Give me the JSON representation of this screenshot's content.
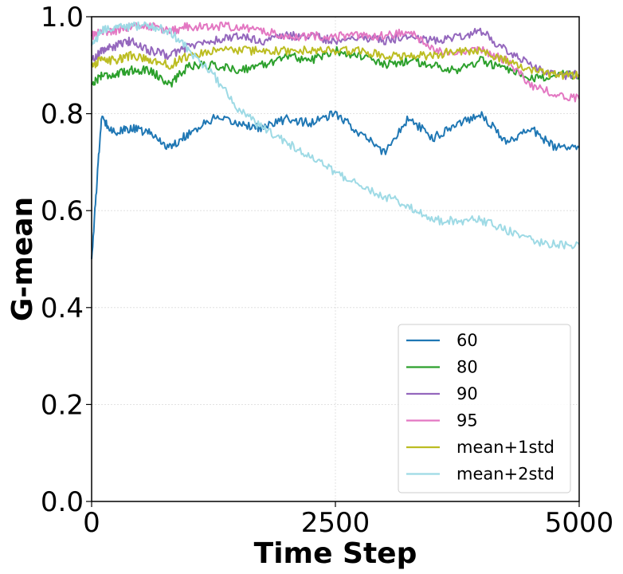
{
  "chart_data": {
    "type": "line",
    "xlabel": "Time Step",
    "ylabel": "G-mean",
    "xlim": [
      0,
      5000
    ],
    "ylim": [
      0.0,
      1.0
    ],
    "xticks": [
      0,
      2500,
      5000
    ],
    "xtick_labels": [
      "0",
      "2500",
      "5000"
    ],
    "yticks": [
      0.0,
      0.2,
      0.4,
      0.6,
      0.8,
      1.0
    ],
    "ytick_labels": [
      "0.0",
      "0.2",
      "0.4",
      "0.6",
      "0.8",
      "1.0"
    ],
    "grid": true,
    "legend_position": "lower-right",
    "x": [
      0,
      100,
      250,
      400,
      600,
      800,
      1000,
      1250,
      1500,
      1750,
      2000,
      2250,
      2500,
      2750,
      3000,
      3250,
      3500,
      3750,
      4000,
      4250,
      4500,
      4750,
      5000
    ],
    "series": [
      {
        "name": "60",
        "color": "#1f77b4",
        "values": [
          0.5,
          0.79,
          0.76,
          0.77,
          0.76,
          0.73,
          0.76,
          0.79,
          0.78,
          0.77,
          0.79,
          0.78,
          0.8,
          0.76,
          0.72,
          0.79,
          0.75,
          0.78,
          0.8,
          0.74,
          0.77,
          0.73,
          0.73
        ]
      },
      {
        "name": "80",
        "color": "#2ca02c",
        "values": [
          0.86,
          0.88,
          0.88,
          0.89,
          0.89,
          0.86,
          0.9,
          0.9,
          0.89,
          0.9,
          0.92,
          0.91,
          0.93,
          0.92,
          0.9,
          0.91,
          0.9,
          0.89,
          0.91,
          0.89,
          0.87,
          0.88,
          0.88
        ]
      },
      {
        "name": "90",
        "color": "#9467bd",
        "values": [
          0.91,
          0.93,
          0.94,
          0.95,
          0.93,
          0.92,
          0.94,
          0.95,
          0.96,
          0.95,
          0.96,
          0.96,
          0.95,
          0.96,
          0.95,
          0.96,
          0.95,
          0.96,
          0.97,
          0.93,
          0.9,
          0.88,
          0.88
        ]
      },
      {
        "name": "95",
        "color": "#e377c2",
        "values": [
          0.96,
          0.97,
          0.97,
          0.98,
          0.98,
          0.97,
          0.98,
          0.98,
          0.98,
          0.97,
          0.96,
          0.96,
          0.96,
          0.96,
          0.96,
          0.97,
          0.93,
          0.93,
          0.93,
          0.91,
          0.86,
          0.84,
          0.83
        ]
      },
      {
        "name": "mean+1std",
        "color": "#bcbd22",
        "values": [
          0.9,
          0.91,
          0.91,
          0.92,
          0.91,
          0.9,
          0.92,
          0.93,
          0.93,
          0.93,
          0.93,
          0.93,
          0.93,
          0.93,
          0.92,
          0.92,
          0.92,
          0.93,
          0.93,
          0.91,
          0.89,
          0.88,
          0.88
        ]
      },
      {
        "name": "mean+2std",
        "color": "#9edae5",
        "values": [
          0.94,
          0.97,
          0.98,
          0.98,
          0.98,
          0.97,
          0.93,
          0.88,
          0.81,
          0.77,
          0.74,
          0.71,
          0.68,
          0.65,
          0.63,
          0.61,
          0.58,
          0.58,
          0.58,
          0.56,
          0.54,
          0.53,
          0.53
        ]
      }
    ]
  }
}
